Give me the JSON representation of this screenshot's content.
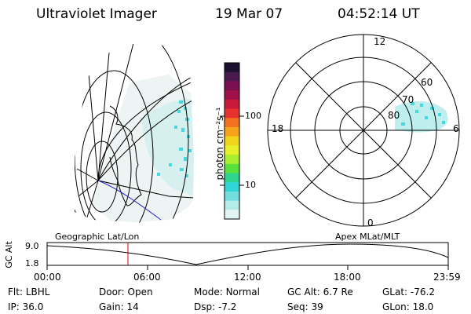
{
  "header": {
    "instrument": "Ultraviolet Imager",
    "date": "19 Mar 07",
    "time": "04:52:14 UT"
  },
  "colorbar": {
    "unit_label": "photon cm⁻²s⁻¹",
    "ticks": [
      "100",
      "10"
    ],
    "colors": [
      "#1b1030",
      "#4a1a4e",
      "#7a1050",
      "#a1104a",
      "#c81a3a",
      "#e6312c",
      "#f2721e",
      "#f7a41a",
      "#f3d41c",
      "#e7ef29",
      "#a9ef2d",
      "#59e23b",
      "#2ed58c",
      "#31d6d6",
      "#72dede",
      "#b4ecea",
      "#e2f5f4"
    ]
  },
  "polar": {
    "labels": {
      "mlt12": "12",
      "mlt18": "18",
      "mlt6": "6",
      "mlt0": "0",
      "lat60": "60",
      "lat70": "70",
      "lat80": "80"
    },
    "glow_color": "#45d9de"
  },
  "projection_labels": {
    "left": "Geographic Lat/Lon",
    "right": "Apex  MLat/MLT"
  },
  "altitude_plot": {
    "y_label": "GC Alt",
    "y_ticks": [
      "9.0",
      "1.8"
    ],
    "x_ticks": [
      "00:00",
      "06:00",
      "12:00",
      "18:00",
      "23:59"
    ],
    "current_time_color": "#d00000"
  },
  "status": {
    "row1": [
      {
        "label": "Flt:",
        "value": "LBHL"
      },
      {
        "label": "Door:",
        "value": "Open"
      },
      {
        "label": "Mode:",
        "value": "Normal"
      },
      {
        "label": "GC Alt:",
        "value": "6.7 Re"
      },
      {
        "label": "GLat:",
        "value": "-76.2"
      }
    ],
    "row2": [
      {
        "label": "IP:",
        "value": "36.0"
      },
      {
        "label": "Gain:",
        "value": "14"
      },
      {
        "label": "Dsp:",
        "value": "-7.2"
      },
      {
        "label": "Seq:",
        "value": "39"
      },
      {
        "label": "GLon:",
        "value": "18.0"
      }
    ]
  }
}
